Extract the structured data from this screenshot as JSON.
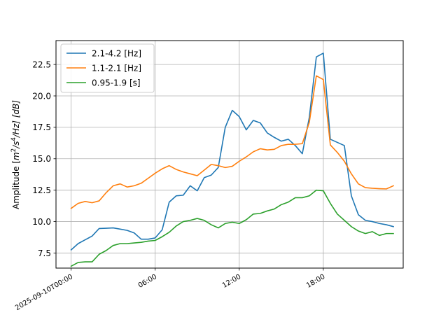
{
  "chart_data": {
    "type": "line",
    "title": "",
    "xlabel": "",
    "ylabel": "Amplitude [m²/s⁴/Hz] [dB]",
    "ylabel_parts": {
      "prefix": "Amplitude [",
      "m": "m",
      "m_exp": "2",
      "mid": "/s",
      "s_exp": "4",
      "suffix": "/Hz] [dB]"
    },
    "xlim_hours": [
      -1.08,
      23.7
    ],
    "ylim": [
      6.3,
      24.4
    ],
    "grid": true,
    "legend_position": "top-left",
    "x_ticks": [
      {
        "hour": 0,
        "label": "2025-09-10T00:00"
      },
      {
        "hour": 6,
        "label": "06:00"
      },
      {
        "hour": 12,
        "label": "12:00"
      },
      {
        "hour": 18,
        "label": "18:00"
      }
    ],
    "y_ticks": [
      {
        "value": 7.5,
        "label": "7.5"
      },
      {
        "value": 10.0,
        "label": "10.0"
      },
      {
        "value": 12.5,
        "label": "12.5"
      },
      {
        "value": 15.0,
        "label": "15.0"
      },
      {
        "value": 17.5,
        "label": "17.5"
      },
      {
        "value": 20.0,
        "label": "20.0"
      },
      {
        "value": 22.5,
        "label": "22.5"
      }
    ],
    "x_hours": [
      0,
      0.5,
      1,
      1.5,
      2,
      2.5,
      3,
      3.5,
      4,
      4.5,
      5,
      5.5,
      6,
      6.5,
      7,
      7.5,
      8,
      8.5,
      9,
      9.5,
      10,
      10.5,
      11,
      11.5,
      12,
      12.5,
      13,
      13.5,
      14,
      14.5,
      15,
      15.5,
      16,
      16.5,
      17,
      17.5,
      18,
      18.5,
      19,
      19.5,
      20,
      20.5,
      21,
      21.5,
      22,
      22.5,
      23
    ],
    "series": [
      {
        "name": "2.1-4.2 [Hz]",
        "color": "#1f77b4",
        "values": [
          7.75,
          8.25,
          8.55,
          8.85,
          9.45,
          9.47,
          9.5,
          9.4,
          9.3,
          9.1,
          8.6,
          8.6,
          8.7,
          9.35,
          11.55,
          12.05,
          12.1,
          12.85,
          12.45,
          13.5,
          13.7,
          14.3,
          17.5,
          18.85,
          18.35,
          17.3,
          18.05,
          17.85,
          17.05,
          16.7,
          16.4,
          16.55,
          16.05,
          15.4,
          18.3,
          23.1,
          23.4,
          16.55,
          16.3,
          16.05,
          12.05,
          10.55,
          10.1,
          10.0,
          9.85,
          9.75,
          9.6
        ]
      },
      {
        "name": "1.1-2.1 [Hz]",
        "color": "#ff7f0e",
        "values": [
          11.05,
          11.45,
          11.6,
          11.5,
          11.65,
          12.3,
          12.85,
          13.0,
          12.75,
          12.85,
          13.05,
          13.45,
          13.85,
          14.2,
          14.45,
          14.15,
          13.95,
          13.8,
          13.65,
          14.1,
          14.55,
          14.45,
          14.3,
          14.4,
          14.8,
          15.15,
          15.55,
          15.8,
          15.7,
          15.75,
          16.05,
          16.15,
          16.15,
          16.2,
          17.9,
          21.6,
          21.3,
          16.1,
          15.5,
          14.8,
          13.8,
          13.0,
          12.7,
          12.65,
          12.62,
          12.6,
          12.85
        ]
      },
      {
        "name": "0.95-1.9 [s]",
        "color": "#2ca02c",
        "values": [
          6.45,
          6.75,
          6.8,
          6.8,
          7.4,
          7.7,
          8.1,
          8.25,
          8.25,
          8.3,
          8.35,
          8.45,
          8.5,
          8.8,
          9.15,
          9.65,
          10.0,
          10.1,
          10.25,
          10.1,
          9.75,
          9.5,
          9.85,
          9.95,
          9.85,
          10.15,
          10.6,
          10.65,
          10.85,
          11.0,
          11.35,
          11.55,
          11.9,
          11.9,
          12.05,
          12.5,
          12.45,
          11.45,
          10.6,
          10.1,
          9.6,
          9.25,
          9.05,
          9.2,
          8.9,
          9.05,
          9.05
        ]
      }
    ]
  }
}
